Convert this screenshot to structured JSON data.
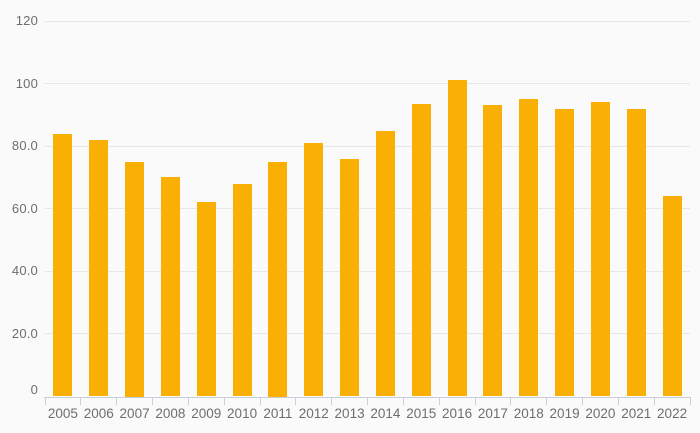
{
  "chart_data": {
    "type": "bar",
    "title": "",
    "xlabel": "",
    "ylabel": "",
    "categories": [
      "2005",
      "2006",
      "2007",
      "2008",
      "2009",
      "2010",
      "2011",
      "2012",
      "2013",
      "2014",
      "2015",
      "2016",
      "2017",
      "2018",
      "2019",
      "2020",
      "2021",
      "2022"
    ],
    "values": [
      84,
      82,
      75,
      70,
      62,
      68,
      75,
      81,
      76,
      85,
      93.5,
      101,
      93,
      95,
      92,
      94,
      92,
      64
    ],
    "ylim": [
      0,
      120
    ],
    "y_ticks": [
      0,
      20,
      40,
      60,
      80,
      100,
      120
    ],
    "y_tick_labels": [
      "0",
      "20.0",
      "40.0",
      "60.0",
      "80.0",
      "100",
      "120"
    ],
    "grid": "horizontal",
    "legend": "none",
    "colors": {
      "bar": "#f9af03",
      "background": "#fafafa",
      "gridline": "#e7e7e7",
      "axis_line": "#c8cfdc",
      "tick_label": "#6e6e6e"
    }
  }
}
